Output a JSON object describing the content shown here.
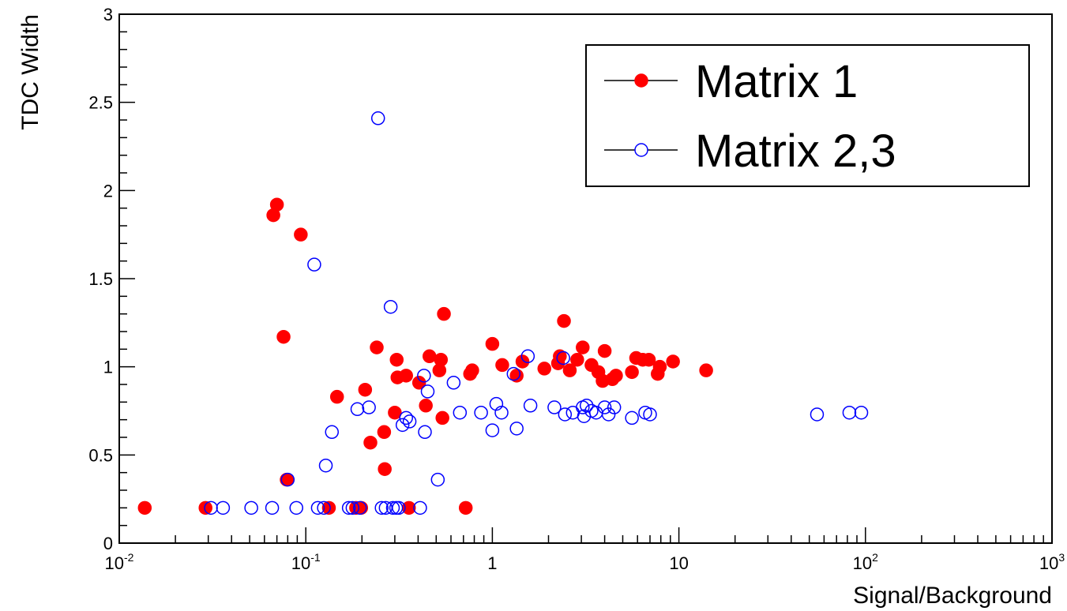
{
  "chart_data": {
    "type": "scatter",
    "title": "",
    "xlabel": "Signal/Background",
    "ylabel": "TDC Width",
    "xscale": "log",
    "xlim": [
      0.01,
      1000
    ],
    "ylim": [
      0,
      3
    ],
    "grid": false,
    "legend_position": "top-right",
    "x_tick_labels": [
      {
        "base": "10",
        "exp": "-2"
      },
      {
        "base": "10",
        "exp": "-1"
      },
      {
        "base": "1",
        "exp": ""
      },
      {
        "base": "10",
        "exp": ""
      },
      {
        "base": "10",
        "exp": "2"
      },
      {
        "base": "10",
        "exp": "3"
      }
    ],
    "y_tick_labels": [
      "0",
      "0.5",
      "1",
      "1.5",
      "2",
      "2.5",
      "3"
    ],
    "series": [
      {
        "name": "Matrix 1",
        "color": "#ff0000",
        "marker": "filled-circle",
        "points": [
          [
            0.0137,
            0.2
          ],
          [
            0.029,
            0.2
          ],
          [
            0.067,
            1.86
          ],
          [
            0.07,
            1.92
          ],
          [
            0.076,
            1.17
          ],
          [
            0.079,
            0.36
          ],
          [
            0.094,
            1.75
          ],
          [
            0.133,
            0.2
          ],
          [
            0.147,
            0.83
          ],
          [
            0.186,
            0.2
          ],
          [
            0.198,
            0.2
          ],
          [
            0.208,
            0.87
          ],
          [
            0.222,
            0.57
          ],
          [
            0.24,
            1.11
          ],
          [
            0.263,
            0.63
          ],
          [
            0.265,
            0.42
          ],
          [
            0.3,
            0.74
          ],
          [
            0.307,
            1.04
          ],
          [
            0.31,
            0.94
          ],
          [
            0.345,
            0.95
          ],
          [
            0.357,
            0.2
          ],
          [
            0.405,
            0.91
          ],
          [
            0.44,
            0.78
          ],
          [
            0.46,
            1.06
          ],
          [
            0.52,
            0.98
          ],
          [
            0.53,
            1.04
          ],
          [
            0.54,
            0.71
          ],
          [
            0.55,
            1.3
          ],
          [
            0.72,
            0.2
          ],
          [
            0.76,
            0.96
          ],
          [
            0.78,
            0.98
          ],
          [
            1.0,
            1.13
          ],
          [
            1.13,
            1.01
          ],
          [
            1.35,
            0.95
          ],
          [
            1.45,
            1.03
          ],
          [
            1.9,
            0.99
          ],
          [
            2.25,
            1.02
          ],
          [
            2.3,
            1.06
          ],
          [
            2.42,
            1.26
          ],
          [
            2.6,
            0.98
          ],
          [
            2.85,
            1.04
          ],
          [
            3.05,
            1.11
          ],
          [
            3.4,
            1.01
          ],
          [
            3.7,
            0.97
          ],
          [
            3.9,
            0.92
          ],
          [
            4.0,
            1.09
          ],
          [
            4.4,
            0.93
          ],
          [
            4.6,
            0.95
          ],
          [
            5.6,
            0.97
          ],
          [
            5.9,
            1.05
          ],
          [
            6.4,
            1.04
          ],
          [
            6.9,
            1.04
          ],
          [
            7.7,
            0.96
          ],
          [
            7.9,
            1.0
          ],
          [
            9.3,
            1.03
          ],
          [
            14.0,
            0.98
          ]
        ]
      },
      {
        "name": "Matrix 2,3",
        "color": "#0000ff",
        "marker": "open-circle",
        "points": [
          [
            0.031,
            0.2
          ],
          [
            0.036,
            0.2
          ],
          [
            0.051,
            0.2
          ],
          [
            0.066,
            0.2
          ],
          [
            0.08,
            0.36
          ],
          [
            0.089,
            0.2
          ],
          [
            0.111,
            1.58
          ],
          [
            0.116,
            0.2
          ],
          [
            0.125,
            0.2
          ],
          [
            0.128,
            0.44
          ],
          [
            0.138,
            0.63
          ],
          [
            0.17,
            0.2
          ],
          [
            0.178,
            0.2
          ],
          [
            0.189,
            0.76
          ],
          [
            0.195,
            0.2
          ],
          [
            0.218,
            0.77
          ],
          [
            0.244,
            2.41
          ],
          [
            0.255,
            0.2
          ],
          [
            0.268,
            0.2
          ],
          [
            0.285,
            1.34
          ],
          [
            0.293,
            0.2
          ],
          [
            0.305,
            0.2
          ],
          [
            0.315,
            0.2
          ],
          [
            0.33,
            0.67
          ],
          [
            0.345,
            0.71
          ],
          [
            0.36,
            0.69
          ],
          [
            0.41,
            0.2
          ],
          [
            0.43,
            0.95
          ],
          [
            0.435,
            0.63
          ],
          [
            0.45,
            0.86
          ],
          [
            0.51,
            0.36
          ],
          [
            0.62,
            0.91
          ],
          [
            0.67,
            0.74
          ],
          [
            0.87,
            0.74
          ],
          [
            1.0,
            0.64
          ],
          [
            1.05,
            0.79
          ],
          [
            1.12,
            0.74
          ],
          [
            1.3,
            0.96
          ],
          [
            1.35,
            0.65
          ],
          [
            1.55,
            1.06
          ],
          [
            1.6,
            0.78
          ],
          [
            2.15,
            0.77
          ],
          [
            2.4,
            1.05
          ],
          [
            2.45,
            0.73
          ],
          [
            2.7,
            0.74
          ],
          [
            3.05,
            0.77
          ],
          [
            3.1,
            0.72
          ],
          [
            3.2,
            0.78
          ],
          [
            3.4,
            0.75
          ],
          [
            3.6,
            0.74
          ],
          [
            4.0,
            0.77
          ],
          [
            4.2,
            0.73
          ],
          [
            4.5,
            0.77
          ],
          [
            5.6,
            0.71
          ],
          [
            6.6,
            0.74
          ],
          [
            7.0,
            0.73
          ],
          [
            55.0,
            0.73
          ],
          [
            82.0,
            0.74
          ],
          [
            95.0,
            0.74
          ]
        ]
      }
    ]
  }
}
